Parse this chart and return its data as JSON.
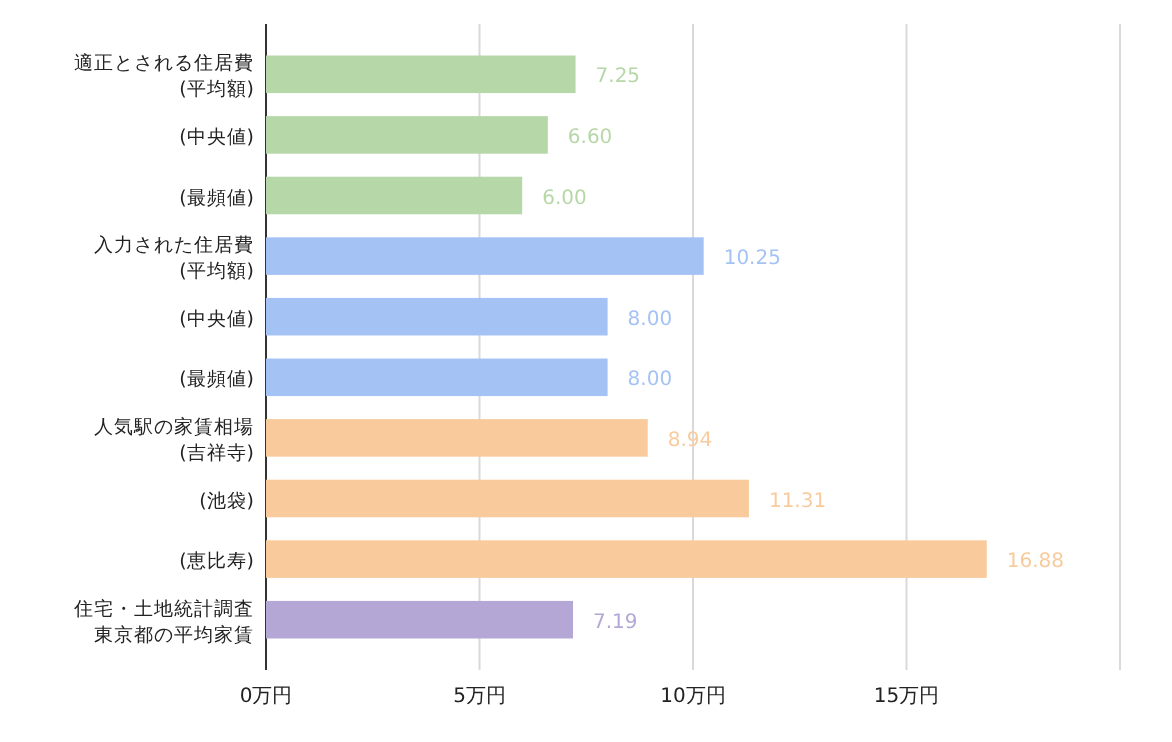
{
  "chart_data": {
    "type": "bar",
    "orientation": "horizontal",
    "categories": [
      "適正とされる住居費(平均額)",
      "(中央値)",
      "(最頻値)",
      "入力された住居費(平均額)",
      "(中央値)",
      "(最頻値)",
      "人気駅の家賃相場(吉祥寺)",
      "(池袋)",
      "(恵比寿)",
      "住宅・土地統計調査東京都の平均家賃"
    ],
    "values": [
      7.25,
      6.6,
      6.0,
      10.25,
      8.0,
      8.0,
      8.94,
      11.31,
      16.88,
      7.19
    ],
    "value_labels": [
      "7.25",
      "6.60",
      "6.00",
      "10.25",
      "8.00",
      "8.00",
      "8.94",
      "11.31",
      "16.88",
      "7.19"
    ],
    "colors": [
      "#b6d7a8",
      "#b6d7a8",
      "#b6d7a8",
      "#a4c2f4",
      "#a4c2f4",
      "#a4c2f4",
      "#f9cb9c",
      "#f9cb9c",
      "#f9cb9c",
      "#b4a7d6"
    ],
    "xlim": [
      0,
      20
    ],
    "xticks": [
      {
        "value": 0,
        "label": "0万円"
      },
      {
        "value": 5,
        "label": "5万円"
      },
      {
        "value": 10,
        "label": "10万円"
      },
      {
        "value": 15,
        "label": "15万円"
      },
      {
        "value": 20,
        "label": null
      }
    ],
    "grid": "x"
  }
}
